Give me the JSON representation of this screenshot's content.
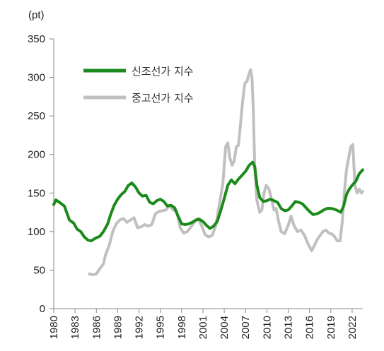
{
  "chart_data": {
    "type": "line",
    "unit_label": "(pt)",
    "ylim": [
      0,
      350
    ],
    "yticks": [
      0,
      50,
      100,
      150,
      200,
      250,
      300,
      350
    ],
    "xlim": [
      1980,
      2023.5
    ],
    "xticks": [
      "1980",
      "1983",
      "1986",
      "1989",
      "1992",
      "1995",
      "1998",
      "2001",
      "2004",
      "2007",
      "2010",
      "2013",
      "2016",
      "2019",
      "2022"
    ],
    "grid": false,
    "legend_position": "top-left",
    "colors": {
      "new_car": "#1a8a1a",
      "used_car": "#c0c0c0",
      "axis": "#888888"
    },
    "series": [
      {
        "name": "신조선가 지수",
        "color": "#1a8a1a",
        "points": [
          [
            1980.0,
            135
          ],
          [
            1980.3,
            141
          ],
          [
            1980.8,
            138
          ],
          [
            1981.5,
            133
          ],
          [
            1982.2,
            115
          ],
          [
            1982.8,
            111
          ],
          [
            1983.3,
            103
          ],
          [
            1983.8,
            100
          ],
          [
            1984.3,
            93
          ],
          [
            1984.8,
            89
          ],
          [
            1985.3,
            88
          ],
          [
            1985.8,
            91
          ],
          [
            1986.5,
            94
          ],
          [
            1987.0,
            100
          ],
          [
            1987.6,
            110
          ],
          [
            1988.0,
            122
          ],
          [
            1988.5,
            134
          ],
          [
            1989.0,
            142
          ],
          [
            1989.5,
            148
          ],
          [
            1990.0,
            152
          ],
          [
            1990.5,
            160
          ],
          [
            1991.0,
            163
          ],
          [
            1991.5,
            158
          ],
          [
            1992.0,
            150
          ],
          [
            1992.5,
            146
          ],
          [
            1993.0,
            147
          ],
          [
            1993.5,
            138
          ],
          [
            1994.0,
            136
          ],
          [
            1994.5,
            140
          ],
          [
            1995.0,
            142
          ],
          [
            1995.5,
            139
          ],
          [
            1996.0,
            133
          ],
          [
            1996.5,
            134
          ],
          [
            1997.0,
            131
          ],
          [
            1997.5,
            120
          ],
          [
            1998.0,
            110
          ],
          [
            1998.5,
            109
          ],
          [
            1999.0,
            110
          ],
          [
            1999.5,
            112
          ],
          [
            2000.0,
            115
          ],
          [
            2000.5,
            116
          ],
          [
            2001.0,
            113
          ],
          [
            2001.5,
            108
          ],
          [
            2002.0,
            104
          ],
          [
            2002.5,
            107
          ],
          [
            2003.0,
            113
          ],
          [
            2003.5,
            127
          ],
          [
            2004.0,
            143
          ],
          [
            2004.5,
            160
          ],
          [
            2005.0,
            167
          ],
          [
            2005.5,
            162
          ],
          [
            2006.0,
            168
          ],
          [
            2006.5,
            173
          ],
          [
            2007.0,
            178
          ],
          [
            2007.5,
            186
          ],
          [
            2008.0,
            190
          ],
          [
            2008.3,
            184
          ],
          [
            2008.6,
            160
          ],
          [
            2009.0,
            144
          ],
          [
            2009.5,
            139
          ],
          [
            2010.0,
            140
          ],
          [
            2010.5,
            142
          ],
          [
            2011.0,
            140
          ],
          [
            2011.5,
            138
          ],
          [
            2012.0,
            130
          ],
          [
            2012.5,
            127
          ],
          [
            2013.0,
            128
          ],
          [
            2013.5,
            133
          ],
          [
            2014.0,
            139
          ],
          [
            2014.5,
            138
          ],
          [
            2015.0,
            136
          ],
          [
            2015.5,
            131
          ],
          [
            2016.0,
            126
          ],
          [
            2016.5,
            122
          ],
          [
            2017.0,
            123
          ],
          [
            2017.5,
            125
          ],
          [
            2018.0,
            128
          ],
          [
            2018.5,
            130
          ],
          [
            2019.0,
            130
          ],
          [
            2019.5,
            129
          ],
          [
            2020.0,
            127
          ],
          [
            2020.4,
            125
          ],
          [
            2020.8,
            133
          ],
          [
            2021.2,
            148
          ],
          [
            2021.6,
            155
          ],
          [
            2022.0,
            160
          ],
          [
            2022.5,
            165
          ],
          [
            2023.0,
            175
          ],
          [
            2023.5,
            180
          ]
        ]
      },
      {
        "name": "중고선가 지수",
        "color": "#c0c0c0",
        "points": [
          [
            1985.0,
            45
          ],
          [
            1985.5,
            44
          ],
          [
            1986.0,
            45
          ],
          [
            1986.5,
            52
          ],
          [
            1987.0,
            58
          ],
          [
            1987.3,
            70
          ],
          [
            1987.8,
            82
          ],
          [
            1988.3,
            100
          ],
          [
            1988.8,
            110
          ],
          [
            1989.3,
            115
          ],
          [
            1989.8,
            117
          ],
          [
            1990.3,
            112
          ],
          [
            1990.8,
            115
          ],
          [
            1991.3,
            118
          ],
          [
            1991.8,
            105
          ],
          [
            1992.3,
            106
          ],
          [
            1992.8,
            109
          ],
          [
            1993.3,
            107
          ],
          [
            1993.8,
            109
          ],
          [
            1994.3,
            123
          ],
          [
            1994.8,
            126
          ],
          [
            1995.3,
            127
          ],
          [
            1995.8,
            128
          ],
          [
            1996.3,
            134
          ],
          [
            1996.8,
            128
          ],
          [
            1997.3,
            126
          ],
          [
            1997.8,
            105
          ],
          [
            1998.3,
            98
          ],
          [
            1998.8,
            100
          ],
          [
            1999.3,
            106
          ],
          [
            1999.8,
            112
          ],
          [
            2000.3,
            117
          ],
          [
            2000.8,
            108
          ],
          [
            2001.3,
            96
          ],
          [
            2001.8,
            93
          ],
          [
            2002.3,
            95
          ],
          [
            2002.8,
            107
          ],
          [
            2003.3,
            135
          ],
          [
            2003.8,
            162
          ],
          [
            2004.2,
            210
          ],
          [
            2004.5,
            215
          ],
          [
            2004.8,
            195
          ],
          [
            2005.1,
            186
          ],
          [
            2005.4,
            192
          ],
          [
            2005.7,
            210
          ],
          [
            2006.0,
            212
          ],
          [
            2006.3,
            240
          ],
          [
            2006.6,
            270
          ],
          [
            2006.9,
            292
          ],
          [
            2007.2,
            295
          ],
          [
            2007.5,
            305
          ],
          [
            2007.7,
            310
          ],
          [
            2007.9,
            300
          ],
          [
            2008.1,
            255
          ],
          [
            2008.3,
            180
          ],
          [
            2008.6,
            140
          ],
          [
            2009.0,
            125
          ],
          [
            2009.3,
            128
          ],
          [
            2009.6,
            150
          ],
          [
            2009.9,
            160
          ],
          [
            2010.3,
            155
          ],
          [
            2010.7,
            140
          ],
          [
            2011.0,
            128
          ],
          [
            2011.3,
            130
          ],
          [
            2011.6,
            115
          ],
          [
            2012.0,
            100
          ],
          [
            2012.5,
            97
          ],
          [
            2013.0,
            108
          ],
          [
            2013.4,
            120
          ],
          [
            2013.8,
            108
          ],
          [
            2014.3,
            100
          ],
          [
            2014.8,
            102
          ],
          [
            2015.3,
            95
          ],
          [
            2015.8,
            84
          ],
          [
            2016.3,
            75
          ],
          [
            2016.7,
            82
          ],
          [
            2017.1,
            90
          ],
          [
            2017.5,
            95
          ],
          [
            2017.9,
            100
          ],
          [
            2018.3,
            102
          ],
          [
            2018.7,
            98
          ],
          [
            2019.1,
            97
          ],
          [
            2019.5,
            94
          ],
          [
            2019.9,
            88
          ],
          [
            2020.3,
            88
          ],
          [
            2020.6,
            112
          ],
          [
            2020.9,
            150
          ],
          [
            2021.2,
            180
          ],
          [
            2021.5,
            195
          ],
          [
            2021.8,
            210
          ],
          [
            2022.1,
            213
          ],
          [
            2022.4,
            160
          ],
          [
            2022.7,
            150
          ],
          [
            2023.0,
            155
          ],
          [
            2023.3,
            150
          ],
          [
            2023.5,
            152
          ]
        ]
      }
    ]
  }
}
